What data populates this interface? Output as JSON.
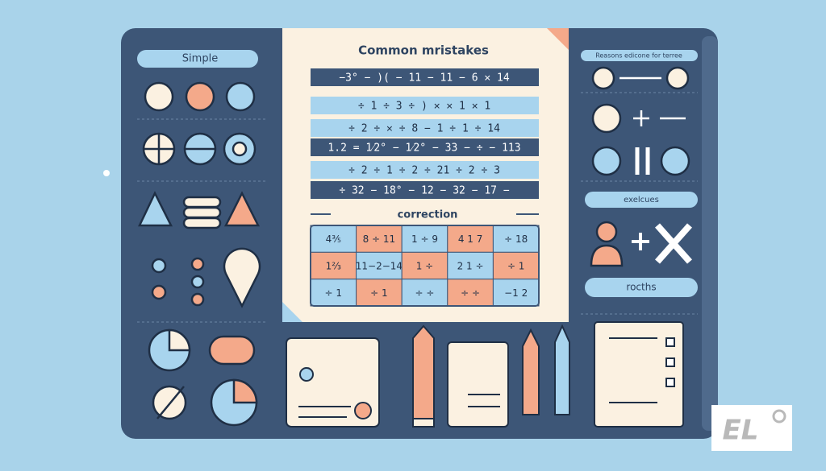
{
  "left_panel": {
    "label": "Simple"
  },
  "center_panel": {
    "title": "Common mristakes",
    "rows": [
      "−3° − )( − 11 − 11 − 6  ✕ 14",
      "÷ 1   ÷ 3   ÷ )   ✕   ✕ 1   ✕ 1",
      "÷ 2   ÷ ✕   ÷ 8   − 1   ÷ 1   ÷ 14",
      "1.2 = 1⁄2° − 1⁄2° − 33 − ÷ − 113",
      "÷ 2   ÷ 1   ÷ 2   ÷ 21   ÷ 2   ÷ 3",
      "÷ 32 − 18° − 12 − 32 − 17 −"
    ],
    "correction_label": "correction",
    "correction_grid": [
      [
        "4⅗",
        "8 ÷ 11",
        "1 ÷ 9",
        "4 1 7",
        "÷ 18"
      ],
      [
        "1⅔",
        "11−2−14",
        "1 ÷",
        "2 1 ÷",
        "÷ 1"
      ],
      [
        "÷ 1",
        "÷ 1",
        "÷ ÷",
        "÷ ÷",
        "−1 2"
      ]
    ]
  },
  "right_panel": {
    "header": "Reasons edicone for terree",
    "exercises": "exelcues",
    "roots": "rocths"
  },
  "logo": "EL"
}
